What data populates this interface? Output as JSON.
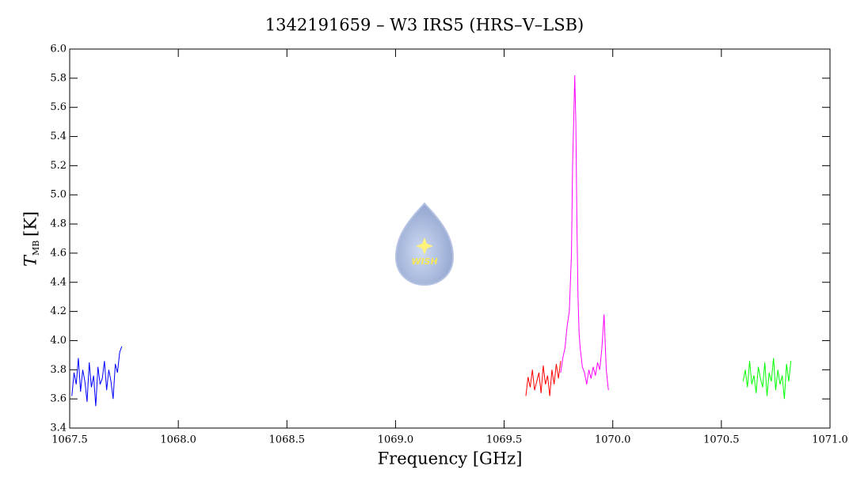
{
  "chart_data": {
    "type": "line",
    "title": "1342191659 – W3 IRS5 (HRS–V–LSB)",
    "x_label": "Frequency [GHz]",
    "y_label": "T",
    "y_label_sub": "MB",
    "y_label_unit": "[K]",
    "logo_text": "WISH",
    "xlim": [
      1067.5,
      1071.0
    ],
    "ylim": [
      3.4,
      6.0
    ],
    "xticks": [
      {
        "value": 1067.5,
        "label": "1067.5"
      },
      {
        "value": 1068.0,
        "label": "1068.0"
      },
      {
        "value": 1068.5,
        "label": "1068.5"
      },
      {
        "value": 1069.0,
        "label": "1069.0"
      },
      {
        "value": 1069.5,
        "label": "1069.5"
      },
      {
        "value": 1070.0,
        "label": "1070.0"
      },
      {
        "value": 1070.5,
        "label": "1070.5"
      },
      {
        "value": 1071.0,
        "label": "1071.0"
      }
    ],
    "yticks": [
      3.4,
      3.6,
      3.8,
      {
        "value": 4.0,
        "label": "4.0"
      },
      4.2,
      4.4,
      4.6,
      4.8,
      {
        "value": 5.0,
        "label": "5.0"
      },
      5.2,
      5.4,
      5.6,
      5.8,
      {
        "value": 6.0,
        "label": "6.0"
      }
    ],
    "series": [
      {
        "color": "#0000ff",
        "x": [
          1067.51,
          1067.52,
          1067.53,
          1067.54,
          1067.55,
          1067.56,
          1067.57,
          1067.58,
          1067.59,
          1067.6,
          1067.61,
          1067.62,
          1067.63,
          1067.64,
          1067.65,
          1067.66,
          1067.67,
          1067.68,
          1067.69,
          1067.7,
          1067.71,
          1067.72,
          1067.73,
          1067.74
        ],
        "values": [
          3.62,
          3.78,
          3.7,
          3.88,
          3.65,
          3.8,
          3.72,
          3.58,
          3.85,
          3.68,
          3.76,
          3.55,
          3.82,
          3.7,
          3.74,
          3.86,
          3.66,
          3.8,
          3.72,
          3.6,
          3.84,
          3.78,
          3.92,
          3.96
        ]
      },
      {
        "color": "#ff0000",
        "x": [
          1069.6,
          1069.61,
          1069.62,
          1069.63,
          1069.64,
          1069.65,
          1069.66,
          1069.67,
          1069.68,
          1069.69,
          1069.7,
          1069.71,
          1069.72,
          1069.73,
          1069.74,
          1069.75,
          1069.76
        ],
        "values": [
          3.62,
          3.75,
          3.68,
          3.8,
          3.66,
          3.72,
          3.78,
          3.64,
          3.83,
          3.7,
          3.76,
          3.62,
          3.8,
          3.7,
          3.84,
          3.74,
          3.86
        ]
      },
      {
        "color": "#ff00ff",
        "x": [
          1069.76,
          1069.77,
          1069.78,
          1069.79,
          1069.8,
          1069.81,
          1069.815,
          1069.82,
          1069.825,
          1069.83,
          1069.835,
          1069.84,
          1069.845,
          1069.85,
          1069.86,
          1069.87,
          1069.88,
          1069.89,
          1069.9,
          1069.91,
          1069.92,
          1069.93,
          1069.94,
          1069.95,
          1069.96,
          1069.97,
          1069.98
        ],
        "values": [
          3.78,
          3.88,
          3.95,
          4.1,
          4.2,
          4.6,
          5.2,
          5.5,
          5.82,
          5.5,
          4.8,
          4.3,
          4.05,
          3.95,
          3.82,
          3.78,
          3.7,
          3.8,
          3.74,
          3.82,
          3.76,
          3.85,
          3.8,
          3.95,
          4.18,
          3.8,
          3.66
        ]
      },
      {
        "color": "#00ff00",
        "x": [
          1070.6,
          1070.61,
          1070.62,
          1070.63,
          1070.64,
          1070.65,
          1070.66,
          1070.67,
          1070.68,
          1070.69,
          1070.7,
          1070.71,
          1070.72,
          1070.73,
          1070.74,
          1070.75,
          1070.76,
          1070.77,
          1070.78,
          1070.79,
          1070.8,
          1070.81,
          1070.82
        ],
        "values": [
          3.72,
          3.8,
          3.68,
          3.86,
          3.7,
          3.76,
          3.64,
          3.82,
          3.74,
          3.68,
          3.85,
          3.62,
          3.78,
          3.72,
          3.88,
          3.66,
          3.8,
          3.7,
          3.76,
          3.6,
          3.84,
          3.72,
          3.86
        ]
      }
    ]
  }
}
